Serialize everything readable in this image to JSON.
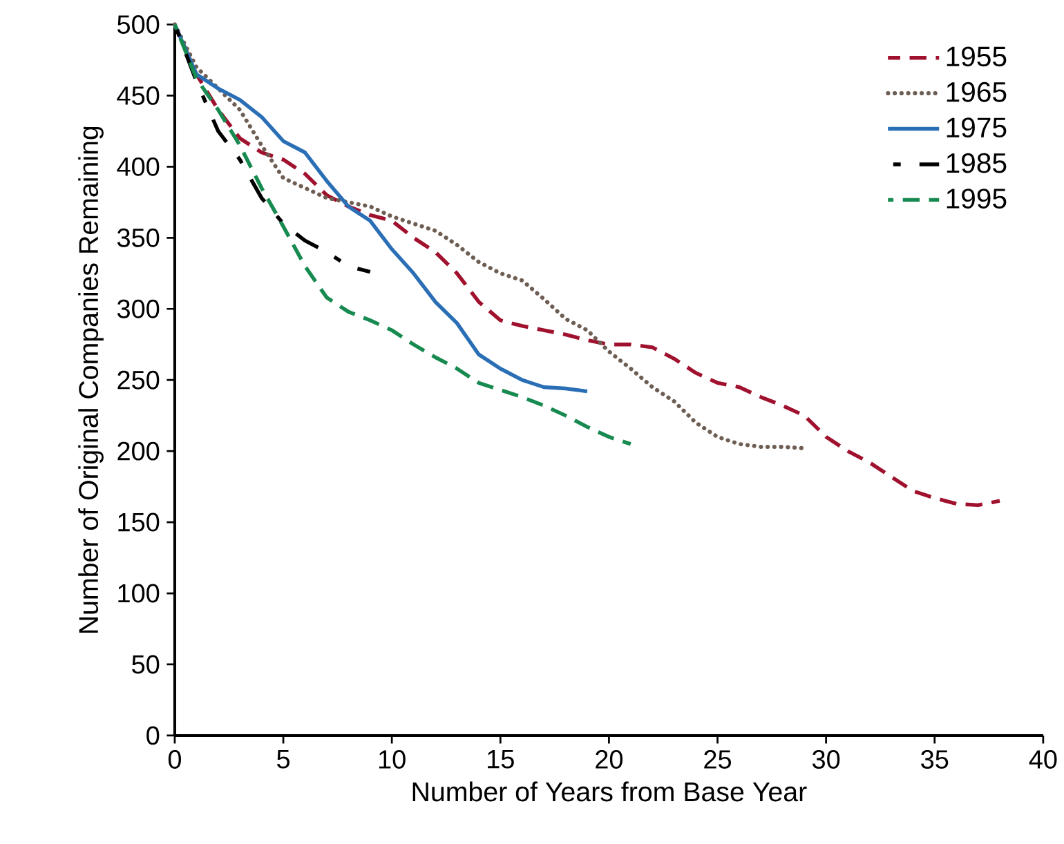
{
  "chart_data": {
    "type": "line",
    "xlabel": "Number of Years from Base Year",
    "ylabel": "Number of Original Companies Remaining",
    "xlim": [
      0,
      40
    ],
    "xticks": [
      0,
      5,
      10,
      15,
      20,
      25,
      30,
      35,
      40
    ],
    "ylim": [
      0,
      500
    ],
    "yticks": [
      0,
      50,
      100,
      150,
      200,
      250,
      300,
      350,
      400,
      450,
      500
    ],
    "legend": "top right",
    "grid": false,
    "series": [
      {
        "name": "1955",
        "color": "#a0112e",
        "line_style": "dashed",
        "x": [
          0,
          1,
          2,
          3,
          4,
          5,
          6,
          7,
          8,
          9,
          10,
          11,
          12,
          13,
          14,
          15,
          16,
          17,
          18,
          19,
          20,
          21,
          22,
          23,
          24,
          25,
          26,
          27,
          28,
          29,
          30,
          31,
          32,
          33,
          34,
          35,
          36,
          37,
          38
        ],
        "values": [
          500,
          465,
          440,
          420,
          410,
          405,
          395,
          380,
          372,
          366,
          362,
          350,
          340,
          325,
          305,
          292,
          288,
          285,
          282,
          278,
          275,
          275,
          273,
          265,
          255,
          248,
          245,
          238,
          232,
          225,
          210,
          200,
          192,
          182,
          172,
          167,
          163,
          162,
          165
        ]
      },
      {
        "name": "1965",
        "color": "#6d5d53",
        "line_style": "dotted",
        "x": [
          0,
          1,
          2,
          3,
          4,
          5,
          6,
          7,
          8,
          9,
          10,
          11,
          12,
          13,
          14,
          15,
          16,
          17,
          18,
          19,
          20,
          21,
          22,
          23,
          24,
          25,
          26,
          27,
          28,
          29
        ],
        "values": [
          500,
          470,
          455,
          440,
          415,
          392,
          385,
          378,
          375,
          372,
          365,
          360,
          355,
          345,
          333,
          325,
          320,
          307,
          293,
          285,
          270,
          258,
          245,
          235,
          220,
          210,
          205,
          203,
          203,
          202
        ]
      },
      {
        "name": "1975",
        "color": "#2a6fb5",
        "line_style": "solid",
        "x": [
          0,
          1,
          2,
          3,
          4,
          5,
          6,
          7,
          8,
          9,
          10,
          11,
          12,
          13,
          14,
          15,
          16,
          17,
          18,
          19
        ],
        "values": [
          500,
          465,
          455,
          447,
          435,
          418,
          410,
          390,
          372,
          362,
          342,
          325,
          305,
          290,
          268,
          258,
          250,
          245,
          244,
          242
        ]
      },
      {
        "name": "1985",
        "color": "#000000",
        "line_style": "longdash",
        "x": [
          0,
          1,
          2,
          3,
          4,
          5,
          6,
          7,
          8,
          9
        ],
        "values": [
          500,
          460,
          425,
          405,
          378,
          360,
          348,
          340,
          330,
          326
        ]
      },
      {
        "name": "1995",
        "color": "#178a50",
        "line_style": "dashed",
        "x": [
          0,
          1,
          2,
          3,
          4,
          5,
          6,
          7,
          8,
          9,
          10,
          11,
          12,
          13,
          14,
          15,
          16,
          17,
          18,
          19,
          20,
          21
        ],
        "values": [
          500,
          462,
          440,
          415,
          385,
          358,
          330,
          308,
          298,
          292,
          285,
          275,
          266,
          258,
          248,
          243,
          238,
          232,
          225,
          217,
          210,
          205
        ]
      }
    ]
  }
}
